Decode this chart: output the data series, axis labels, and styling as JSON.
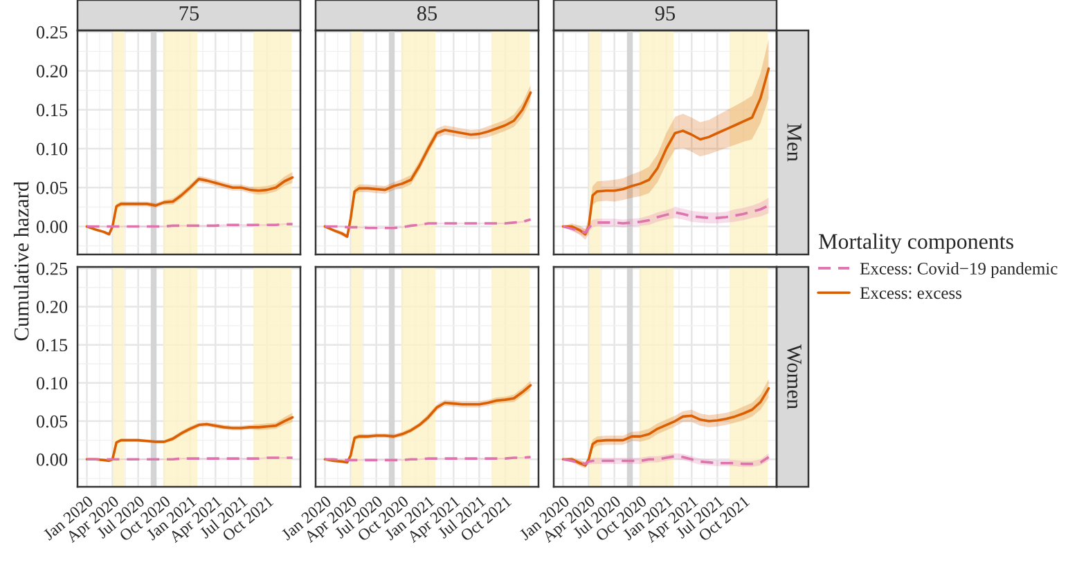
{
  "chart_data": [
    {
      "type": "line",
      "title": "75",
      "ylabel": "Cumulative hazard",
      "tick_labels": "y",
      "grid": true,
      "x": [
        "2020-01-01",
        "2020-02-01",
        "2020-03-01",
        "2020-03-20",
        "2020-04-01",
        "2020-04-15",
        "2020-05-01",
        "2020-06-01",
        "2020-07-01",
        "2020-08-01",
        "2020-09-01",
        "2020-10-01",
        "2020-11-01",
        "2020-12-01",
        "2021-01-01",
        "2021-02-01",
        "2021-03-01",
        "2021-04-01",
        "2021-05-01",
        "2021-06-01",
        "2021-07-01",
        "2021-08-01",
        "2021-09-01",
        "2021-10-01",
        "2021-11-01",
        "2021-12-01",
        "2021-12-30"
      ],
      "xlim": [
        "2019-11-29",
        "2022-01-27"
      ],
      "xticks": [
        {
          "value": "2020-01-01",
          "label": null
        },
        {
          "value": "2020-04-01",
          "label": null
        },
        {
          "value": "2020-07-01",
          "label": null
        },
        {
          "value": "2020-10-01",
          "label": null
        },
        {
          "value": "2021-01-01",
          "label": null
        },
        {
          "value": "2021-04-01",
          "label": null
        },
        {
          "value": "2021-07-01",
          "label": null
        },
        {
          "value": "2021-10-01",
          "label": null
        }
      ],
      "ylim": [
        -0.036,
        0.252
      ],
      "yticks": [
        {
          "value": 0,
          "label": "0.00"
        },
        {
          "value": 0.05,
          "label": "0.05"
        },
        {
          "value": 0.1,
          "label": "0.10"
        },
        {
          "value": 0.15,
          "label": "0.15"
        },
        {
          "value": 0.2,
          "label": "0.20"
        },
        {
          "value": 0.25,
          "label": "0.25"
        }
      ],
      "bands": [
        {
          "axis": "x",
          "from": "2020-04-02",
          "to": "2020-05-14",
          "color": "#fdf2c6"
        },
        {
          "axis": "x",
          "from": "2020-09-29",
          "to": "2021-01-27",
          "color": "#fdf2c6"
        },
        {
          "axis": "x",
          "from": "2021-08-14",
          "to": "2021-12-27",
          "color": "#fdf2c6"
        }
      ],
      "ref_lines": [
        {
          "axis": "x",
          "value": "2020-08-25",
          "color": "#d4d4d4"
        }
      ],
      "series": [
        {
          "color": "#de73ad",
          "line_style": "dashed",
          "values": [
            0,
            0,
            0,
            0,
            0,
            0,
            0,
            0,
            0,
            0,
            0,
            0,
            0.001,
            0.001,
            0.001,
            0.001,
            0.001,
            0.001,
            0.002,
            0.002,
            0.002,
            0.002,
            0.002,
            0.002,
            0.002,
            0.003,
            0.003
          ],
          "lower": [
            0,
            -0.001,
            -0.001,
            -0.001,
            -0.001,
            -0.001,
            -0.001,
            -0.001,
            -0.001,
            -0.001,
            -0.001,
            -0.001,
            0,
            0,
            0,
            0,
            0,
            0,
            0.001,
            0.001,
            0.001,
            0.001,
            0.001,
            0.001,
            0.001,
            0.002,
            0.002
          ],
          "upper": [
            0,
            0.001,
            0.001,
            0.001,
            0.001,
            0.001,
            0.001,
            0.001,
            0.001,
            0.001,
            0.001,
            0.001,
            0.002,
            0.002,
            0.002,
            0.002,
            0.002,
            0.002,
            0.003,
            0.003,
            0.003,
            0.003,
            0.003,
            0.003,
            0.003,
            0.004,
            0.004
          ]
        },
        {
          "color": "#d95f02",
          "line_style": "solid",
          "values": [
            0,
            -0.004,
            -0.007,
            -0.01,
            0.0,
            0.026,
            0.029,
            0.029,
            0.029,
            0.029,
            0.027,
            0.031,
            0.032,
            0.04,
            0.05,
            0.061,
            0.059,
            0.056,
            0.053,
            0.05,
            0.05,
            0.047,
            0.046,
            0.047,
            0.05,
            0.058,
            0.063
          ],
          "lower": [
            0,
            -0.005,
            -0.009,
            -0.012,
            -0.003,
            0.023,
            0.026,
            0.026,
            0.026,
            0.026,
            0.024,
            0.028,
            0.028,
            0.036,
            0.046,
            0.057,
            0.055,
            0.052,
            0.049,
            0.046,
            0.046,
            0.043,
            0.041,
            0.042,
            0.045,
            0.052,
            0.056
          ],
          "upper": [
            0,
            -0.003,
            -0.005,
            -0.008,
            0.003,
            0.029,
            0.032,
            0.032,
            0.032,
            0.032,
            0.03,
            0.034,
            0.036,
            0.044,
            0.054,
            0.065,
            0.063,
            0.06,
            0.057,
            0.054,
            0.054,
            0.051,
            0.051,
            0.052,
            0.055,
            0.064,
            0.07
          ]
        }
      ]
    },
    {
      "type": "line",
      "title": "85",
      "tick_labels": false,
      "grid": true,
      "x": [
        "2020-01-01",
        "2020-02-01",
        "2020-03-01",
        "2020-03-20",
        "2020-04-01",
        "2020-04-15",
        "2020-05-01",
        "2020-06-01",
        "2020-07-01",
        "2020-08-01",
        "2020-09-01",
        "2020-10-01",
        "2020-11-01",
        "2020-12-01",
        "2021-01-01",
        "2021-02-01",
        "2021-03-01",
        "2021-04-01",
        "2021-05-01",
        "2021-06-01",
        "2021-07-01",
        "2021-08-01",
        "2021-09-01",
        "2021-10-01",
        "2021-11-01",
        "2021-12-01",
        "2021-12-30"
      ],
      "xlim": [
        "2019-11-29",
        "2022-01-27"
      ],
      "xticks": [
        {
          "value": "2020-01-01",
          "label": null
        },
        {
          "value": "2020-04-01",
          "label": null
        },
        {
          "value": "2020-07-01",
          "label": null
        },
        {
          "value": "2020-10-01",
          "label": null
        },
        {
          "value": "2021-01-01",
          "label": null
        },
        {
          "value": "2021-04-01",
          "label": null
        },
        {
          "value": "2021-07-01",
          "label": null
        },
        {
          "value": "2021-10-01",
          "label": null
        }
      ],
      "ylim": [
        -0.036,
        0.252
      ],
      "yticks": [
        {
          "value": 0,
          "label": null
        },
        {
          "value": 0.05,
          "label": null
        },
        {
          "value": 0.1,
          "label": null
        },
        {
          "value": 0.15,
          "label": null
        },
        {
          "value": 0.2,
          "label": null
        },
        {
          "value": 0.25,
          "label": null
        }
      ],
      "bands": [
        {
          "axis": "x",
          "from": "2020-04-02",
          "to": "2020-05-14",
          "color": "#fdf2c6"
        },
        {
          "axis": "x",
          "from": "2020-09-29",
          "to": "2021-01-27",
          "color": "#fdf2c6"
        },
        {
          "axis": "x",
          "from": "2021-08-14",
          "to": "2021-12-27",
          "color": "#fdf2c6"
        }
      ],
      "ref_lines": [
        {
          "axis": "x",
          "value": "2020-08-25",
          "color": "#d4d4d4"
        }
      ],
      "series": [
        {
          "color": "#de73ad",
          "line_style": "dashed",
          "values": [
            0,
            0,
            0,
            -0.001,
            -0.001,
            -0.001,
            -0.001,
            -0.002,
            -0.002,
            -0.002,
            -0.002,
            -0.001,
            0.001,
            0.002,
            0.004,
            0.004,
            0.004,
            0.004,
            0.004,
            0.004,
            0.004,
            0.004,
            0.004,
            0.004,
            0.005,
            0.006,
            0.009
          ],
          "lower": [
            0,
            -0.001,
            -0.001,
            -0.002,
            -0.002,
            -0.002,
            -0.002,
            -0.003,
            -0.003,
            -0.003,
            -0.003,
            -0.002,
            0,
            0.001,
            0.003,
            0.003,
            0.003,
            0.003,
            0.003,
            0.003,
            0.003,
            0.003,
            0.003,
            0.003,
            0.004,
            0.005,
            0.007
          ],
          "upper": [
            0,
            0.001,
            0.001,
            0,
            0,
            0,
            0,
            -0.001,
            -0.001,
            -0.001,
            -0.001,
            0,
            0.002,
            0.003,
            0.005,
            0.005,
            0.005,
            0.005,
            0.005,
            0.005,
            0.005,
            0.005,
            0.005,
            0.005,
            0.006,
            0.007,
            0.011
          ]
        },
        {
          "color": "#d95f02",
          "line_style": "solid",
          "values": [
            0,
            -0.005,
            -0.009,
            -0.013,
            0.01,
            0.045,
            0.049,
            0.049,
            0.048,
            0.047,
            0.052,
            0.055,
            0.06,
            0.078,
            0.1,
            0.12,
            0.124,
            0.122,
            0.12,
            0.118,
            0.119,
            0.122,
            0.126,
            0.13,
            0.136,
            0.15,
            0.172
          ],
          "lower": [
            0,
            -0.007,
            -0.012,
            -0.016,
            0.006,
            0.04,
            0.044,
            0.044,
            0.043,
            0.042,
            0.047,
            0.049,
            0.054,
            0.072,
            0.094,
            0.114,
            0.118,
            0.116,
            0.114,
            0.112,
            0.113,
            0.115,
            0.119,
            0.123,
            0.128,
            0.141,
            0.162
          ],
          "upper": [
            0,
            -0.003,
            -0.006,
            -0.01,
            0.014,
            0.05,
            0.054,
            0.054,
            0.053,
            0.052,
            0.057,
            0.061,
            0.066,
            0.084,
            0.106,
            0.126,
            0.13,
            0.128,
            0.126,
            0.124,
            0.125,
            0.129,
            0.133,
            0.137,
            0.144,
            0.159,
            0.182
          ]
        }
      ]
    },
    {
      "type": "line",
      "title": "95",
      "y2label": "Men",
      "tick_labels": false,
      "grid": true,
      "legend": "right",
      "legend_title": "Mortality components",
      "x": [
        "2020-01-01",
        "2020-02-01",
        "2020-03-01",
        "2020-03-20",
        "2020-04-01",
        "2020-04-15",
        "2020-05-01",
        "2020-06-01",
        "2020-07-01",
        "2020-08-01",
        "2020-09-01",
        "2020-10-01",
        "2020-11-01",
        "2020-12-01",
        "2021-01-01",
        "2021-02-01",
        "2021-03-01",
        "2021-04-01",
        "2021-05-01",
        "2021-06-01",
        "2021-07-01",
        "2021-08-01",
        "2021-09-01",
        "2021-10-01",
        "2021-11-01",
        "2021-12-01",
        "2021-12-30"
      ],
      "xlim": [
        "2019-11-29",
        "2022-01-27"
      ],
      "xticks": [
        {
          "value": "2020-01-01",
          "label": null
        },
        {
          "value": "2020-04-01",
          "label": null
        },
        {
          "value": "2020-07-01",
          "label": null
        },
        {
          "value": "2020-10-01",
          "label": null
        },
        {
          "value": "2021-01-01",
          "label": null
        },
        {
          "value": "2021-04-01",
          "label": null
        },
        {
          "value": "2021-07-01",
          "label": null
        },
        {
          "value": "2021-10-01",
          "label": null
        }
      ],
      "ylim": [
        -0.036,
        0.252
      ],
      "yticks": [
        {
          "value": 0,
          "label": null
        },
        {
          "value": 0.05,
          "label": null
        },
        {
          "value": 0.1,
          "label": null
        },
        {
          "value": 0.15,
          "label": null
        },
        {
          "value": 0.2,
          "label": null
        },
        {
          "value": 0.25,
          "label": null
        }
      ],
      "bands": [
        {
          "axis": "x",
          "from": "2020-04-02",
          "to": "2020-05-14",
          "color": "#fdf2c6"
        },
        {
          "axis": "x",
          "from": "2020-09-29",
          "to": "2021-01-27",
          "color": "#fdf2c6"
        },
        {
          "axis": "x",
          "from": "2021-08-14",
          "to": "2021-12-27",
          "color": "#fdf2c6"
        }
      ],
      "ref_lines": [
        {
          "axis": "x",
          "value": "2020-08-25",
          "color": "#d4d4d4"
        }
      ],
      "series": [
        {
          "name": "Excess: Covid−19 pandemic",
          "color": "#de73ad",
          "line_style": "dashed",
          "values": [
            0,
            -0.003,
            -0.006,
            -0.008,
            -0.002,
            0.004,
            0.005,
            0.005,
            0.005,
            0.004,
            0.005,
            0.006,
            0.008,
            0.012,
            0.015,
            0.018,
            0.016,
            0.013,
            0.012,
            0.011,
            0.011,
            0.012,
            0.014,
            0.016,
            0.019,
            0.022,
            0.027
          ],
          "lower": [
            0,
            -0.006,
            -0.01,
            -0.013,
            -0.007,
            -0.001,
            0,
            0,
            0,
            -0.001,
            0,
            0.001,
            0.002,
            0.006,
            0.009,
            0.011,
            0.009,
            0.006,
            0.005,
            0.004,
            0.004,
            0.005,
            0.006,
            0.008,
            0.011,
            0.013,
            0.017
          ],
          "upper": [
            0,
            0,
            -0.002,
            -0.003,
            0.003,
            0.009,
            0.01,
            0.01,
            0.01,
            0.009,
            0.01,
            0.011,
            0.014,
            0.018,
            0.021,
            0.025,
            0.023,
            0.02,
            0.019,
            0.018,
            0.018,
            0.019,
            0.022,
            0.024,
            0.027,
            0.031,
            0.037
          ]
        },
        {
          "name": "Excess: excess",
          "color": "#d95f02",
          "line_style": "solid",
          "values": [
            0,
            0,
            -0.005,
            -0.01,
            0.0,
            0.04,
            0.045,
            0.046,
            0.046,
            0.048,
            0.052,
            0.055,
            0.06,
            0.075,
            0.1,
            0.12,
            0.123,
            0.118,
            0.112,
            0.115,
            0.12,
            0.125,
            0.13,
            0.135,
            0.14,
            0.165,
            0.203
          ],
          "lower": [
            0,
            -0.004,
            -0.011,
            -0.017,
            -0.01,
            0.028,
            0.032,
            0.033,
            0.032,
            0.034,
            0.037,
            0.039,
            0.043,
            0.057,
            0.08,
            0.099,
            0.101,
            0.096,
            0.09,
            0.093,
            0.097,
            0.101,
            0.105,
            0.109,
            0.112,
            0.133,
            0.165
          ],
          "upper": [
            0,
            0.004,
            0.001,
            -0.003,
            0.01,
            0.052,
            0.058,
            0.059,
            0.06,
            0.062,
            0.067,
            0.071,
            0.077,
            0.093,
            0.12,
            0.141,
            0.145,
            0.14,
            0.134,
            0.137,
            0.143,
            0.149,
            0.155,
            0.161,
            0.168,
            0.197,
            0.241
          ]
        }
      ]
    },
    {
      "type": "line",
      "grid": true,
      "x": [
        "2020-01-01",
        "2020-02-01",
        "2020-03-01",
        "2020-03-20",
        "2020-04-01",
        "2020-04-15",
        "2020-05-01",
        "2020-06-01",
        "2020-07-01",
        "2020-08-01",
        "2020-09-01",
        "2020-10-01",
        "2020-11-01",
        "2020-12-01",
        "2021-01-01",
        "2021-02-01",
        "2021-03-01",
        "2021-04-01",
        "2021-05-01",
        "2021-06-01",
        "2021-07-01",
        "2021-08-01",
        "2021-09-01",
        "2021-10-01",
        "2021-11-01",
        "2021-12-01",
        "2021-12-30"
      ],
      "xlim": [
        "2019-11-29",
        "2022-01-27"
      ],
      "xticks": [
        {
          "value": "2020-01-01",
          "label": "Jan 2020"
        },
        {
          "value": "2020-04-01",
          "label": "Apr 2020"
        },
        {
          "value": "2020-07-01",
          "label": "Jul 2020"
        },
        {
          "value": "2020-10-01",
          "label": "Oct 2020"
        },
        {
          "value": "2021-01-01",
          "label": "Jan 2021"
        },
        {
          "value": "2021-04-01",
          "label": "Apr 2021"
        },
        {
          "value": "2021-07-01",
          "label": "Jul 2021"
        },
        {
          "value": "2021-10-01",
          "label": "Oct 2021"
        }
      ],
      "ylim": [
        -0.036,
        0.252
      ],
      "yticks": [
        {
          "value": 0,
          "label": "0.00"
        },
        {
          "value": 0.05,
          "label": "0.05"
        },
        {
          "value": 0.1,
          "label": "0.10"
        },
        {
          "value": 0.15,
          "label": "0.15"
        },
        {
          "value": 0.2,
          "label": "0.20"
        },
        {
          "value": 0.25,
          "label": "0.25"
        }
      ],
      "bands": [
        {
          "axis": "x",
          "from": "2020-04-02",
          "to": "2020-05-14",
          "color": "#fdf2c6"
        },
        {
          "axis": "x",
          "from": "2020-09-29",
          "to": "2021-01-27",
          "color": "#fdf2c6"
        },
        {
          "axis": "x",
          "from": "2021-08-14",
          "to": "2021-12-27",
          "color": "#fdf2c6"
        }
      ],
      "ref_lines": [
        {
          "axis": "x",
          "value": "2020-08-25",
          "color": "#d4d4d4"
        }
      ],
      "series": [
        {
          "color": "#de73ad",
          "line_style": "dashed",
          "values": [
            0,
            0,
            0,
            0,
            0,
            0,
            0,
            0,
            0,
            0,
            0,
            0,
            0,
            0.001,
            0.001,
            0.001,
            0.001,
            0.001,
            0.001,
            0.001,
            0.001,
            0.001,
            0.001,
            0.002,
            0.002,
            0.002,
            0.002
          ],
          "lower": [
            0,
            -0.001,
            -0.001,
            -0.001,
            -0.001,
            -0.001,
            -0.001,
            -0.001,
            -0.001,
            -0.001,
            -0.001,
            -0.001,
            -0.001,
            0,
            0,
            0,
            0,
            0,
            0,
            0,
            0,
            0,
            0,
            0.001,
            0.001,
            0.001,
            0.001
          ],
          "upper": [
            0,
            0.001,
            0.001,
            0.001,
            0.001,
            0.001,
            0.001,
            0.001,
            0.001,
            0.001,
            0.001,
            0.001,
            0.001,
            0.002,
            0.002,
            0.002,
            0.002,
            0.002,
            0.002,
            0.002,
            0.002,
            0.002,
            0.002,
            0.003,
            0.003,
            0.003,
            0.003
          ]
        },
        {
          "color": "#d95f02",
          "line_style": "solid",
          "values": [
            0,
            0,
            -0.001,
            -0.002,
            0.0,
            0.022,
            0.025,
            0.025,
            0.025,
            0.024,
            0.023,
            0.023,
            0.027,
            0.034,
            0.04,
            0.045,
            0.046,
            0.044,
            0.042,
            0.041,
            0.041,
            0.042,
            0.042,
            0.043,
            0.044,
            0.05,
            0.055
          ],
          "lower": [
            0,
            -0.001,
            -0.002,
            -0.003,
            -0.002,
            0.02,
            0.023,
            0.023,
            0.023,
            0.022,
            0.021,
            0.021,
            0.024,
            0.031,
            0.037,
            0.042,
            0.043,
            0.041,
            0.039,
            0.038,
            0.038,
            0.039,
            0.038,
            0.039,
            0.04,
            0.045,
            0.049
          ],
          "upper": [
            0,
            0.001,
            0,
            -0.001,
            0.002,
            0.024,
            0.027,
            0.027,
            0.027,
            0.026,
            0.025,
            0.025,
            0.03,
            0.037,
            0.043,
            0.048,
            0.049,
            0.047,
            0.045,
            0.044,
            0.044,
            0.045,
            0.046,
            0.047,
            0.048,
            0.055,
            0.061
          ]
        }
      ]
    },
    {
      "type": "line",
      "tick_labels": "x",
      "grid": true,
      "x": [
        "2020-01-01",
        "2020-02-01",
        "2020-03-01",
        "2020-03-20",
        "2020-04-01",
        "2020-04-15",
        "2020-05-01",
        "2020-06-01",
        "2020-07-01",
        "2020-08-01",
        "2020-09-01",
        "2020-10-01",
        "2020-11-01",
        "2020-12-01",
        "2021-01-01",
        "2021-02-01",
        "2021-03-01",
        "2021-04-01",
        "2021-05-01",
        "2021-06-01",
        "2021-07-01",
        "2021-08-01",
        "2021-09-01",
        "2021-10-01",
        "2021-11-01",
        "2021-12-01",
        "2021-12-30"
      ],
      "xlim": [
        "2019-11-29",
        "2022-01-27"
      ],
      "xticks": [
        {
          "value": "2020-01-01",
          "label": "Jan 2020"
        },
        {
          "value": "2020-04-01",
          "label": "Apr 2020"
        },
        {
          "value": "2020-07-01",
          "label": "Jul 2020"
        },
        {
          "value": "2020-10-01",
          "label": "Oct 2020"
        },
        {
          "value": "2021-01-01",
          "label": "Jan 2021"
        },
        {
          "value": "2021-04-01",
          "label": "Apr 2021"
        },
        {
          "value": "2021-07-01",
          "label": "Jul 2021"
        },
        {
          "value": "2021-10-01",
          "label": "Oct 2021"
        }
      ],
      "ylim": [
        -0.036,
        0.252
      ],
      "yticks": [
        {
          "value": 0,
          "label": null
        },
        {
          "value": 0.05,
          "label": null
        },
        {
          "value": 0.1,
          "label": null
        },
        {
          "value": 0.15,
          "label": null
        },
        {
          "value": 0.2,
          "label": null
        },
        {
          "value": 0.25,
          "label": null
        }
      ],
      "bands": [
        {
          "axis": "x",
          "from": "2020-04-02",
          "to": "2020-05-14",
          "color": "#fdf2c6"
        },
        {
          "axis": "x",
          "from": "2020-09-29",
          "to": "2021-01-27",
          "color": "#fdf2c6"
        },
        {
          "axis": "x",
          "from": "2021-08-14",
          "to": "2021-12-27",
          "color": "#fdf2c6"
        }
      ],
      "ref_lines": [
        {
          "axis": "x",
          "value": "2020-08-25",
          "color": "#d4d4d4"
        }
      ],
      "series": [
        {
          "color": "#de73ad",
          "line_style": "dashed",
          "values": [
            0,
            0,
            -0.001,
            -0.001,
            -0.001,
            -0.001,
            -0.001,
            -0.001,
            -0.001,
            -0.001,
            -0.001,
            -0.001,
            0,
            0,
            0.001,
            0.001,
            0.001,
            0.001,
            0.001,
            0.001,
            0.001,
            0.001,
            0.001,
            0.001,
            0.002,
            0.002,
            0.003
          ],
          "lower": [
            0,
            -0.001,
            -0.002,
            -0.002,
            -0.002,
            -0.002,
            -0.002,
            -0.002,
            -0.002,
            -0.002,
            -0.002,
            -0.002,
            -0.001,
            -0.001,
            0,
            0,
            0,
            0,
            0,
            0,
            0,
            0,
            0,
            0,
            0.001,
            0.001,
            0.002
          ],
          "upper": [
            0,
            0.001,
            0,
            0,
            0,
            0,
            0,
            0,
            0,
            0,
            0,
            0,
            0.001,
            0.001,
            0.002,
            0.002,
            0.002,
            0.002,
            0.002,
            0.002,
            0.002,
            0.002,
            0.002,
            0.002,
            0.003,
            0.003,
            0.004
          ]
        },
        {
          "color": "#d95f02",
          "line_style": "solid",
          "values": [
            0,
            -0.002,
            -0.003,
            -0.004,
            0.005,
            0.028,
            0.03,
            0.03,
            0.031,
            0.031,
            0.03,
            0.033,
            0.038,
            0.045,
            0.055,
            0.068,
            0.074,
            0.073,
            0.072,
            0.072,
            0.072,
            0.074,
            0.077,
            0.078,
            0.08,
            0.088,
            0.097
          ],
          "lower": [
            0,
            -0.003,
            -0.005,
            -0.006,
            0.002,
            0.025,
            0.027,
            0.027,
            0.028,
            0.028,
            0.027,
            0.03,
            0.035,
            0.042,
            0.051,
            0.064,
            0.07,
            0.069,
            0.068,
            0.068,
            0.068,
            0.07,
            0.073,
            0.074,
            0.075,
            0.083,
            0.091
          ],
          "upper": [
            0,
            -0.001,
            -0.001,
            -0.002,
            0.008,
            0.031,
            0.033,
            0.033,
            0.034,
            0.034,
            0.033,
            0.036,
            0.041,
            0.048,
            0.059,
            0.072,
            0.078,
            0.077,
            0.076,
            0.076,
            0.076,
            0.078,
            0.081,
            0.082,
            0.085,
            0.093,
            0.103
          ]
        }
      ]
    },
    {
      "type": "line",
      "y2label": "Women",
      "tick_labels": "x",
      "grid": true,
      "x": [
        "2020-01-01",
        "2020-02-01",
        "2020-03-01",
        "2020-03-20",
        "2020-04-01",
        "2020-04-15",
        "2020-05-01",
        "2020-06-01",
        "2020-07-01",
        "2020-08-01",
        "2020-09-01",
        "2020-10-01",
        "2020-11-01",
        "2020-12-01",
        "2021-01-01",
        "2021-02-01",
        "2021-03-01",
        "2021-04-01",
        "2021-05-01",
        "2021-06-01",
        "2021-07-01",
        "2021-08-01",
        "2021-09-01",
        "2021-10-01",
        "2021-11-01",
        "2021-12-01",
        "2021-12-30"
      ],
      "xlim": [
        "2019-11-29",
        "2022-01-27"
      ],
      "xticks": [
        {
          "value": "2020-01-01",
          "label": "Jan 2020"
        },
        {
          "value": "2020-04-01",
          "label": "Apr 2020"
        },
        {
          "value": "2020-07-01",
          "label": "Jul 2020"
        },
        {
          "value": "2020-10-01",
          "label": "Oct 2020"
        },
        {
          "value": "2021-01-01",
          "label": "Jan 2021"
        },
        {
          "value": "2021-04-01",
          "label": "Apr 2021"
        },
        {
          "value": "2021-07-01",
          "label": "Jul 2021"
        },
        {
          "value": "2021-10-01",
          "label": "Oct 2021"
        }
      ],
      "ylim": [
        -0.036,
        0.252
      ],
      "yticks": [
        {
          "value": 0,
          "label": null
        },
        {
          "value": 0.05,
          "label": null
        },
        {
          "value": 0.1,
          "label": null
        },
        {
          "value": 0.15,
          "label": null
        },
        {
          "value": 0.2,
          "label": null
        },
        {
          "value": 0.25,
          "label": null
        }
      ],
      "bands": [
        {
          "axis": "x",
          "from": "2020-04-02",
          "to": "2020-05-14",
          "color": "#fdf2c6"
        },
        {
          "axis": "x",
          "from": "2020-09-29",
          "to": "2021-01-27",
          "color": "#fdf2c6"
        },
        {
          "axis": "x",
          "from": "2021-08-14",
          "to": "2021-12-27",
          "color": "#fdf2c6"
        }
      ],
      "ref_lines": [
        {
          "axis": "x",
          "value": "2020-08-25",
          "color": "#d4d4d4"
        }
      ],
      "series": [
        {
          "color": "#de73ad",
          "line_style": "dashed",
          "values": [
            0,
            -0.002,
            -0.005,
            -0.006,
            -0.003,
            -0.002,
            -0.002,
            -0.002,
            -0.002,
            -0.002,
            -0.002,
            -0.002,
            0,
            0,
            0.002,
            0.004,
            0.003,
            0.0,
            -0.003,
            -0.004,
            -0.005,
            -0.005,
            -0.005,
            -0.006,
            -0.006,
            -0.004,
            0.003
          ],
          "lower": [
            0,
            -0.004,
            -0.008,
            -0.009,
            -0.007,
            -0.006,
            -0.006,
            -0.006,
            -0.006,
            -0.006,
            -0.006,
            -0.006,
            -0.004,
            -0.004,
            -0.002,
            0,
            -0.001,
            -0.004,
            -0.007,
            -0.008,
            -0.009,
            -0.009,
            -0.009,
            -0.01,
            -0.01,
            -0.008,
            -0.002
          ],
          "upper": [
            0,
            0,
            -0.002,
            -0.003,
            0.001,
            0.002,
            0.002,
            0.002,
            0.002,
            0.002,
            0.002,
            0.002,
            0.004,
            0.004,
            0.006,
            0.008,
            0.007,
            0.004,
            0.001,
            0,
            -0.001,
            -0.001,
            -0.001,
            -0.002,
            -0.002,
            0,
            0.008
          ]
        },
        {
          "color": "#d95f02",
          "line_style": "solid",
          "values": [
            0,
            0,
            -0.005,
            -0.008,
            0.0,
            0.02,
            0.024,
            0.025,
            0.025,
            0.025,
            0.03,
            0.03,
            0.033,
            0.04,
            0.045,
            0.05,
            0.056,
            0.057,
            0.052,
            0.05,
            0.051,
            0.053,
            0.056,
            0.06,
            0.065,
            0.075,
            0.093
          ],
          "lower": [
            0,
            -0.003,
            -0.009,
            -0.012,
            -0.005,
            0.014,
            0.018,
            0.019,
            0.019,
            0.019,
            0.024,
            0.023,
            0.026,
            0.033,
            0.038,
            0.043,
            0.049,
            0.049,
            0.044,
            0.042,
            0.043,
            0.045,
            0.048,
            0.051,
            0.056,
            0.065,
            0.081
          ],
          "upper": [
            0,
            0.003,
            -0.001,
            -0.004,
            0.005,
            0.026,
            0.03,
            0.031,
            0.031,
            0.031,
            0.036,
            0.037,
            0.04,
            0.047,
            0.052,
            0.057,
            0.063,
            0.065,
            0.06,
            0.058,
            0.059,
            0.061,
            0.064,
            0.069,
            0.074,
            0.085,
            0.105
          ]
        }
      ]
    }
  ]
}
